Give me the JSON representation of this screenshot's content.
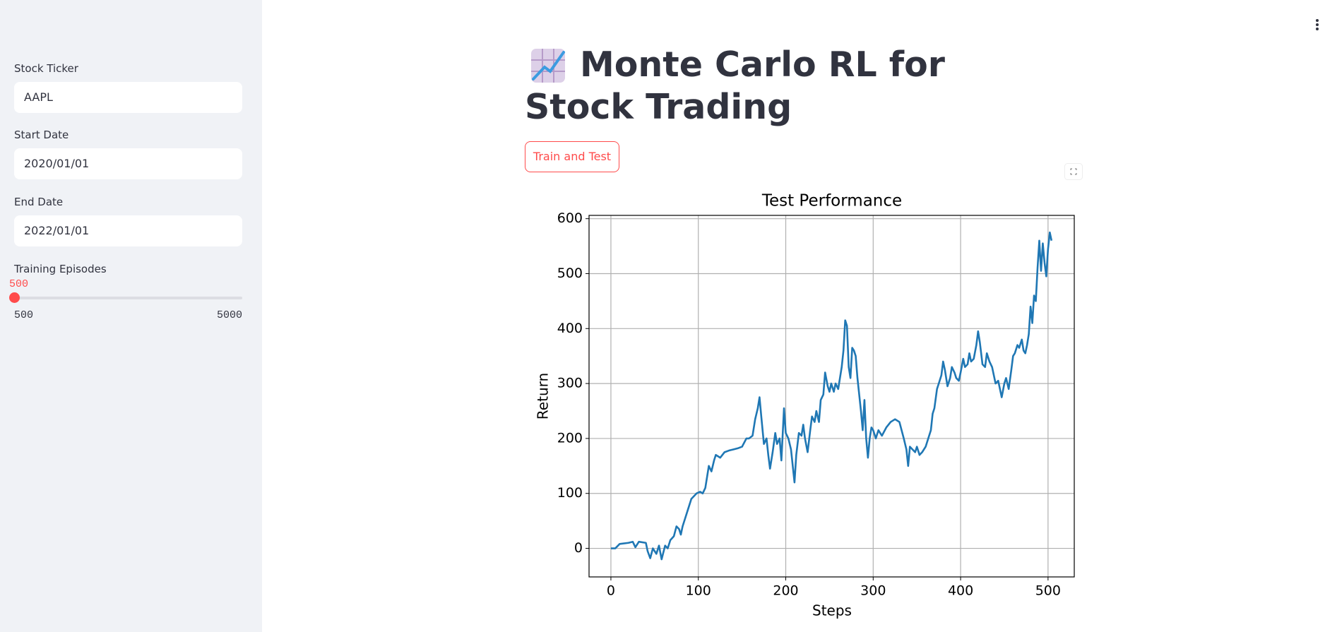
{
  "sidebar": {
    "fields": [
      {
        "label": "Stock Ticker",
        "value": "AAPL"
      },
      {
        "label": "Start Date",
        "value": "2020/01/01"
      },
      {
        "label": "End Date",
        "value": "2022/01/01"
      }
    ],
    "slider": {
      "label": "Training Episodes",
      "value": 500,
      "min": 500,
      "max": 5000
    }
  },
  "header": {
    "title": "Monte Carlo RL for Stock Trading"
  },
  "button": {
    "label": "Train and Test"
  },
  "chart_data": {
    "type": "line",
    "title": "Test Performance",
    "x_label": "Steps",
    "y_label": "Return",
    "x": [
      0,
      5,
      10,
      20,
      25,
      28,
      32,
      40,
      42,
      45,
      48,
      52,
      55,
      58,
      62,
      65,
      68,
      72,
      75,
      78,
      80,
      82,
      85,
      88,
      92,
      95,
      98,
      102,
      105,
      108,
      110,
      112,
      115,
      118,
      120,
      125,
      130,
      135,
      140,
      145,
      150,
      155,
      158,
      162,
      165,
      168,
      170,
      172,
      175,
      178,
      180,
      182,
      185,
      188,
      190,
      193,
      195,
      198,
      200,
      203,
      206,
      208,
      210,
      212,
      215,
      218,
      220,
      222,
      225,
      228,
      230,
      233,
      235,
      238,
      240,
      243,
      245,
      248,
      250,
      252,
      255,
      257,
      260,
      262,
      264,
      266,
      268,
      270,
      272,
      274,
      276,
      278,
      280,
      282,
      284,
      286,
      288,
      290,
      292,
      294,
      296,
      298,
      300,
      303,
      306,
      310,
      315,
      320,
      325,
      330,
      335,
      338,
      340,
      342,
      345,
      348,
      350,
      353,
      356,
      360,
      363,
      366,
      368,
      370,
      373,
      375,
      378,
      380,
      382,
      385,
      388,
      390,
      393,
      395,
      398,
      400,
      403,
      405,
      408,
      410,
      412,
      415,
      418,
      420,
      422,
      425,
      428,
      430,
      433,
      436,
      440,
      443,
      445,
      447,
      450,
      452,
      455,
      458,
      460,
      462,
      465,
      467,
      470,
      472,
      474,
      476,
      478,
      480,
      482,
      484,
      486,
      488,
      490,
      492,
      494,
      496,
      498,
      500,
      502,
      504
    ],
    "series": [
      {
        "name": "Return",
        "color": "#1f77b4",
        "values": [
          0,
          0,
          8,
          10,
          12,
          2,
          12,
          10,
          -5,
          -18,
          0,
          -10,
          5,
          -20,
          5,
          0,
          15,
          22,
          40,
          35,
          25,
          40,
          55,
          70,
          90,
          95,
          100,
          103,
          100,
          110,
          130,
          150,
          140,
          160,
          170,
          165,
          175,
          178,
          180,
          182,
          185,
          200,
          200,
          205,
          235,
          255,
          275,
          240,
          190,
          200,
          170,
          145,
          175,
          210,
          190,
          200,
          160,
          255,
          210,
          200,
          180,
          150,
          120,
          170,
          210,
          205,
          225,
          200,
          175,
          215,
          240,
          230,
          250,
          230,
          270,
          280,
          320,
          295,
          285,
          300,
          285,
          300,
          290,
          310,
          330,
          360,
          415,
          405,
          330,
          310,
          365,
          360,
          350,
          310,
          280,
          250,
          215,
          270,
          200,
          165,
          200,
          220,
          215,
          200,
          215,
          205,
          220,
          230,
          235,
          230,
          200,
          180,
          150,
          185,
          180,
          175,
          185,
          170,
          175,
          185,
          200,
          215,
          245,
          255,
          290,
          300,
          315,
          340,
          325,
          295,
          310,
          330,
          320,
          310,
          305,
          320,
          345,
          330,
          335,
          355,
          340,
          345,
          370,
          395,
          375,
          335,
          330,
          355,
          340,
          330,
          300,
          305,
          290,
          275,
          300,
          310,
          290,
          325,
          350,
          355,
          370,
          365,
          380,
          360,
          355,
          370,
          390,
          440,
          410,
          460,
          450,
          510,
          560,
          505,
          555,
          520,
          495,
          545,
          575,
          560
        ]
      }
    ],
    "xlim": [
      -25,
      530
    ],
    "ylim": [
      -52,
      606
    ],
    "xticks": [
      0,
      100,
      200,
      300,
      400,
      500
    ],
    "yticks": [
      0,
      100,
      200,
      300,
      400,
      500,
      600
    ],
    "grid": true
  }
}
